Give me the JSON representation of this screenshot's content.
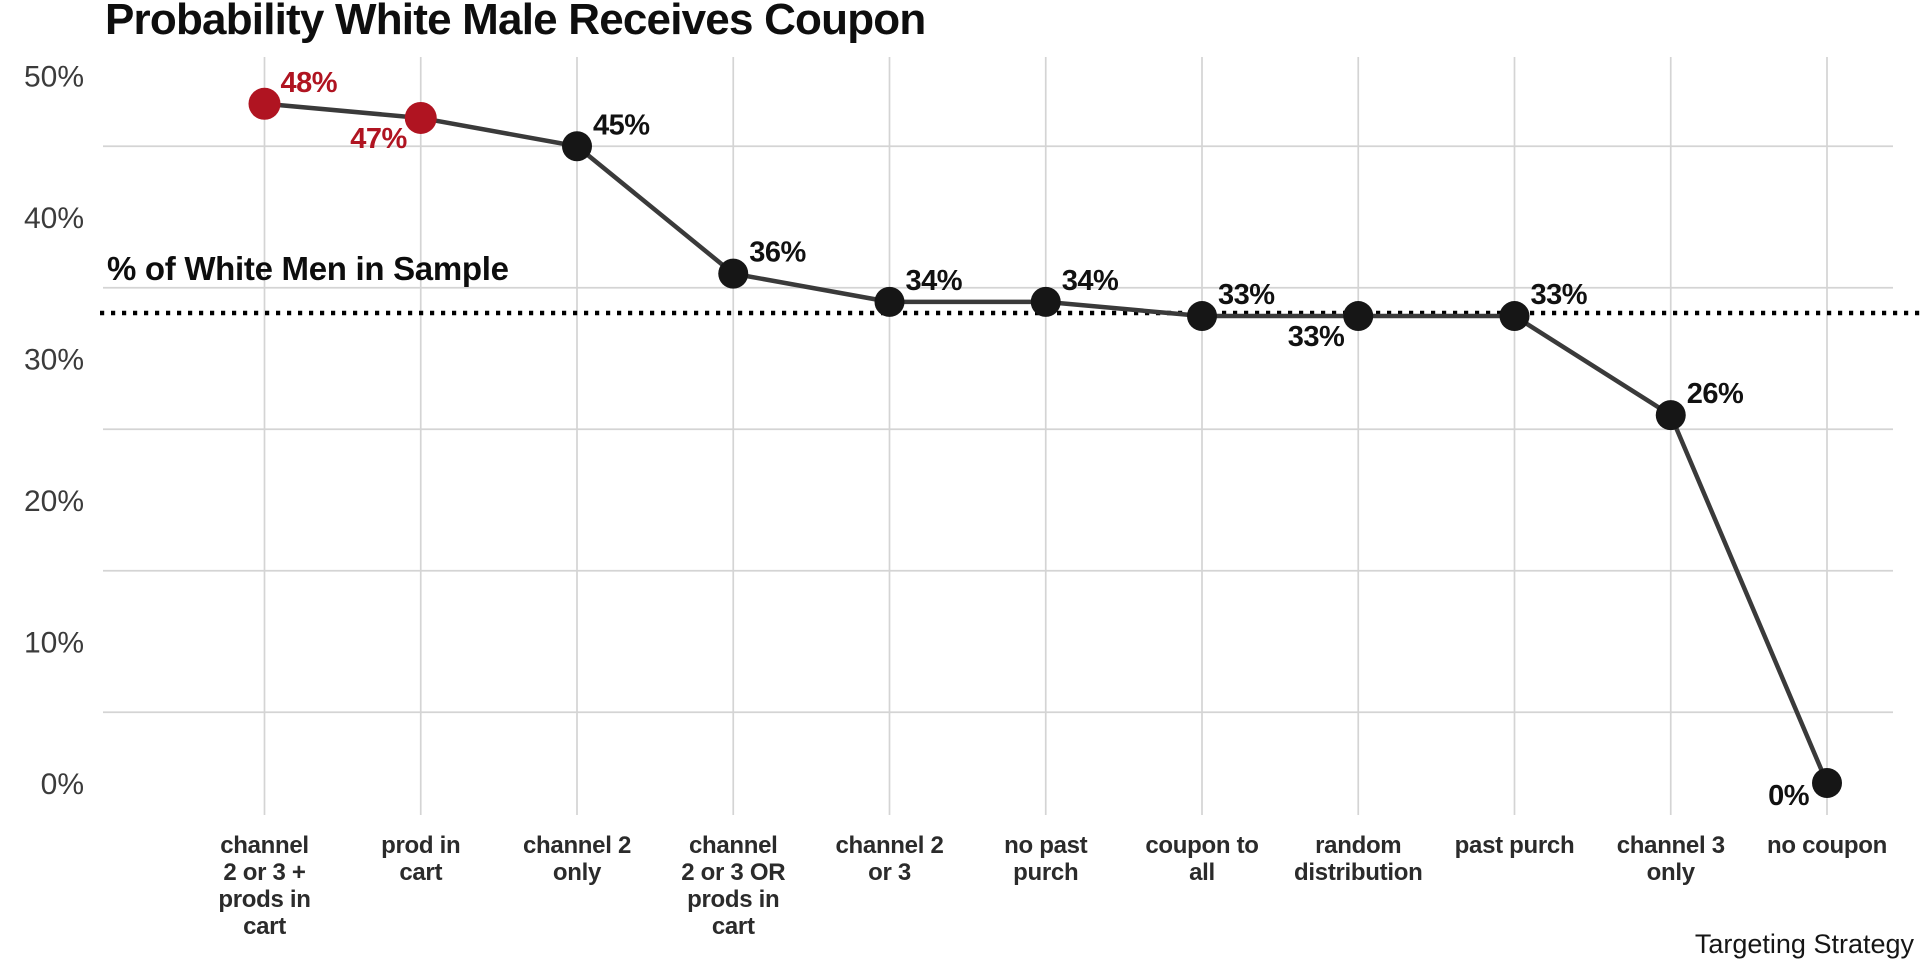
{
  "title": "Probability White Male Receives Coupon",
  "chart_data": {
    "type": "line",
    "title": "Probability White Male Receives Coupon",
    "xlabel": "Targeting Strategy",
    "ylabel": "",
    "ylim": [
      0,
      52
    ],
    "grid": true,
    "legend_position": "none",
    "categories": [
      "channel 2 or 3 + prods in cart",
      "prod in cart",
      "channel 2 only",
      "channel 2 or 3 OR prods in cart",
      "channel 2 or 3",
      "no past purch",
      "coupon to all",
      "random distribution",
      "past purch",
      "channel 3 only",
      "no coupon"
    ],
    "category_tick_lines": [
      [
        "channel",
        "2 or 3 +",
        "prods in",
        "cart"
      ],
      [
        "prod in",
        "cart"
      ],
      [
        "channel 2",
        "only"
      ],
      [
        "channel",
        "2 or 3 OR",
        "prods in",
        "cart"
      ],
      [
        "channel 2",
        "or 3"
      ],
      [
        "no past",
        "purch"
      ],
      [
        "coupon to",
        "all"
      ],
      [
        "random",
        "distribution"
      ],
      [
        "past purch"
      ],
      [
        "channel 3",
        "only"
      ],
      [
        "no coupon"
      ]
    ],
    "series": [
      {
        "name": "Probability White Male Receives Coupon",
        "values": [
          48,
          47,
          45,
          36,
          34,
          34,
          33,
          33,
          33,
          26,
          0
        ],
        "point_labels": [
          "48%",
          "47%",
          "45%",
          "36%",
          "34%",
          "34%",
          "33%",
          "33%",
          "33%",
          "26%",
          "0%"
        ],
        "highlighted_points": [
          0,
          1
        ]
      }
    ],
    "point_label_positions": [
      "above-right",
      "below-left",
      "above-right",
      "above-right",
      "above-right",
      "above-right",
      "above-right",
      "below-left",
      "above-right",
      "above-right",
      "left"
    ],
    "y_ticks": [
      {
        "value": 50,
        "label": "50%"
      },
      {
        "value": 40,
        "label": "40%"
      },
      {
        "value": 30,
        "label": "30%"
      },
      {
        "value": 20,
        "label": "20%"
      },
      {
        "value": 10,
        "label": "10%"
      },
      {
        "value": 0,
        "label": "0%"
      }
    ],
    "gridlines_horizontal_at": [
      45,
      35,
      25,
      15,
      5
    ],
    "reference_line": {
      "value": 33,
      "label": "% of White Men in Sample",
      "style": "dotted"
    }
  },
  "colors": {
    "highlight": "#b01421",
    "point": "#161616",
    "line": "#3a3a3a",
    "grid": "#d4d4d4",
    "reference": "#000000",
    "y_tick_text": "#3b3b3b",
    "x_tick_text": "#2b2b2b",
    "title_text": "#0e0e0e",
    "axis_label_text": "#161616"
  }
}
